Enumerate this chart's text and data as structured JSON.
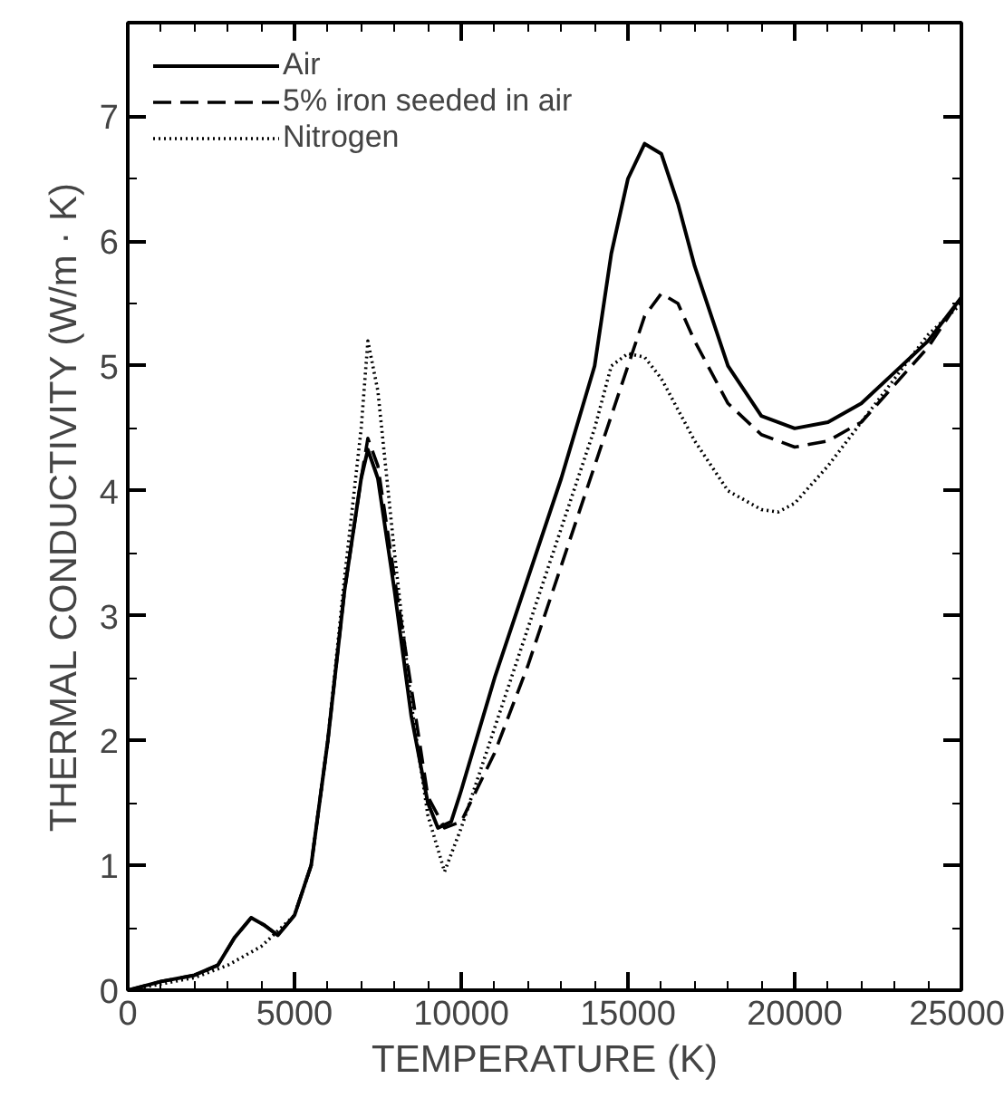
{
  "chart_data": {
    "type": "line",
    "xlabel": "TEMPERATURE (K)",
    "ylabel": "THERMAL CONDUCTIVITY (W/m · K)",
    "xlim": [
      0,
      25000
    ],
    "ylim": [
      0,
      7.75
    ],
    "xticks": [
      0,
      5000,
      10000,
      15000,
      20000,
      25000
    ],
    "yticks": [
      0,
      1,
      2,
      3,
      4,
      5,
      6,
      7
    ],
    "grid": false,
    "legend": "top left",
    "series": [
      {
        "name": "Air",
        "color": "#000000",
        "line_style": "solid",
        "x": [
          0,
          1000,
          2000,
          2700,
          3200,
          3700,
          4100,
          4500,
          5000,
          5500,
          6000,
          6500,
          7000,
          7200,
          7500,
          8000,
          8500,
          9000,
          9300,
          9700,
          10000,
          11000,
          12000,
          13000,
          14000,
          14500,
          15000,
          15500,
          16000,
          16500,
          17000,
          18000,
          19000,
          20000,
          21000,
          22000,
          23000,
          24000,
          25000
        ],
        "values": [
          0,
          0.07,
          0.12,
          0.2,
          0.42,
          0.58,
          0.52,
          0.44,
          0.6,
          1.0,
          2.0,
          3.2,
          4.1,
          4.33,
          4.1,
          3.2,
          2.2,
          1.5,
          1.3,
          1.35,
          1.6,
          2.5,
          3.3,
          4.1,
          5.0,
          5.9,
          6.5,
          6.78,
          6.7,
          6.3,
          5.8,
          5.0,
          4.6,
          4.5,
          4.55,
          4.7,
          4.95,
          5.2,
          5.55
        ]
      },
      {
        "name": "5% iron seeded in air",
        "color": "#000000",
        "line_style": "dashed",
        "x": [
          0,
          1000,
          2000,
          2700,
          3200,
          3700,
          4100,
          4500,
          5000,
          5500,
          6000,
          6500,
          7000,
          7200,
          7500,
          8000,
          9000,
          9500,
          10000,
          11000,
          12000,
          13000,
          14000,
          15000,
          15500,
          16000,
          16500,
          17000,
          18000,
          19000,
          20000,
          21000,
          22000,
          23000,
          24000,
          25000
        ],
        "values": [
          0,
          0.07,
          0.12,
          0.2,
          0.42,
          0.58,
          0.52,
          0.44,
          0.6,
          1.0,
          2.0,
          3.2,
          4.1,
          4.42,
          4.2,
          3.3,
          1.55,
          1.3,
          1.35,
          1.9,
          2.6,
          3.4,
          4.2,
          5.0,
          5.4,
          5.58,
          5.5,
          5.2,
          4.7,
          4.45,
          4.35,
          4.4,
          4.55,
          4.85,
          5.15,
          5.55
        ]
      },
      {
        "name": "Nitrogen",
        "color": "#000000",
        "line_style": "dotted",
        "x": [
          0,
          2000,
          3000,
          4000,
          5000,
          5500,
          6000,
          6500,
          7000,
          7200,
          7500,
          8000,
          8500,
          9000,
          9500,
          10000,
          11000,
          12000,
          13000,
          14000,
          14500,
          15000,
          15500,
          16000,
          17000,
          18000,
          19000,
          19500,
          20000,
          21000,
          22000,
          23000,
          24000,
          25000
        ],
        "values": [
          0,
          0.1,
          0.2,
          0.35,
          0.6,
          1.0,
          2.0,
          3.3,
          4.5,
          5.2,
          4.8,
          3.5,
          2.3,
          1.4,
          0.95,
          1.3,
          2.1,
          2.9,
          3.7,
          4.5,
          5.0,
          5.1,
          5.07,
          4.9,
          4.4,
          4.0,
          3.85,
          3.83,
          3.9,
          4.2,
          4.55,
          4.9,
          5.25,
          5.5
        ]
      }
    ]
  }
}
